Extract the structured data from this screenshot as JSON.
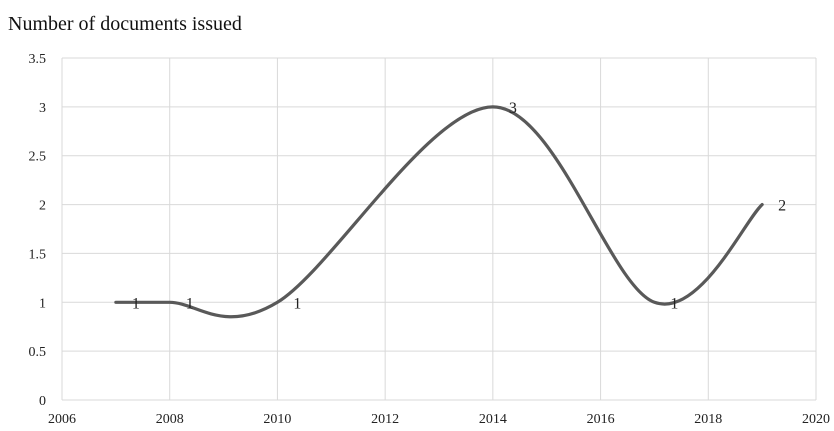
{
  "chart_data": {
    "type": "line",
    "title": "Number of documents issued",
    "xlabel": "",
    "ylabel": "",
    "xlim": [
      2006,
      2020
    ],
    "ylim": [
      0,
      3.5
    ],
    "x_ticks": [
      2006,
      2008,
      2010,
      2012,
      2014,
      2016,
      2018,
      2020
    ],
    "y_ticks": [
      0,
      0.5,
      1,
      1.5,
      2,
      2.5,
      3,
      3.5
    ],
    "grid": true,
    "smooth": true,
    "series": [
      {
        "x": [
          2007,
          2008,
          2010,
          2014,
          2017,
          2019
        ],
        "values": [
          1,
          1,
          1,
          3,
          1,
          2
        ],
        "data_labels": [
          "1",
          "1",
          "1",
          "3",
          "1",
          "2"
        ]
      }
    ],
    "line_color": "#595959",
    "grid_color": "#d9d9d9"
  }
}
